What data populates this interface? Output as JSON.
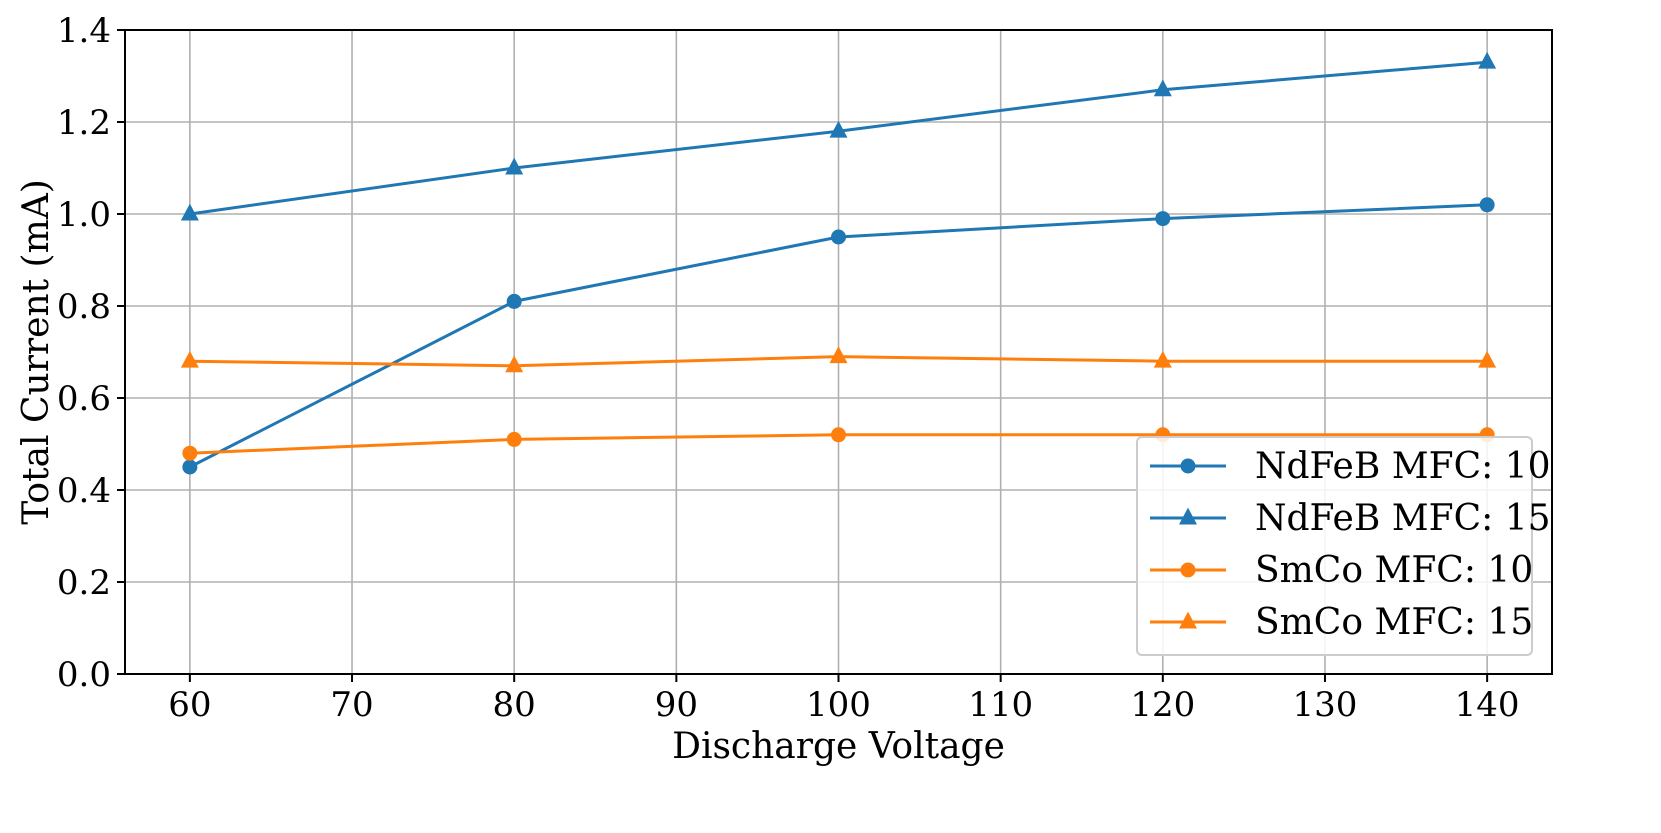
{
  "chart_data": {
    "type": "line",
    "title": "",
    "xlabel": "Discharge Voltage",
    "ylabel": "Total Current (mA)",
    "xlim": [
      56,
      144
    ],
    "ylim": [
      0.0,
      1.4
    ],
    "x_ticks": [
      60,
      70,
      80,
      90,
      100,
      110,
      120,
      130,
      140
    ],
    "x_tick_labels": [
      "60",
      "70",
      "80",
      "90",
      "100",
      "110",
      "120",
      "130",
      "140"
    ],
    "y_ticks": [
      0.0,
      0.2,
      0.4,
      0.6,
      0.8,
      1.0,
      1.2,
      1.4
    ],
    "y_tick_labels": [
      "0.0",
      "0.2",
      "0.4",
      "0.6",
      "0.8",
      "1.0",
      "1.2",
      "1.4"
    ],
    "grid": true,
    "legend_position": "lower-right",
    "x": [
      60,
      80,
      100,
      120,
      140
    ],
    "series": [
      {
        "name": "NdFeB MFC: 10",
        "color": "#1f77b4",
        "marker": "circle",
        "values": [
          0.45,
          0.81,
          0.95,
          0.99,
          1.02
        ]
      },
      {
        "name": "NdFeB MFC: 15",
        "color": "#1f77b4",
        "marker": "triangle",
        "values": [
          1.0,
          1.1,
          1.18,
          1.27,
          1.33
        ]
      },
      {
        "name": "SmCo MFC: 10",
        "color": "#ff7f0e",
        "marker": "circle",
        "values": [
          0.48,
          0.51,
          0.52,
          0.52,
          0.52
        ]
      },
      {
        "name": "SmCo MFC: 15",
        "color": "#ff7f0e",
        "marker": "triangle",
        "values": [
          0.68,
          0.67,
          0.69,
          0.68,
          0.68
        ]
      }
    ]
  }
}
